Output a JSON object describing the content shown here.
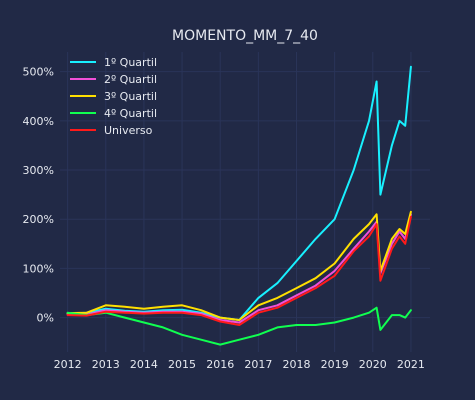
{
  "chart_data": {
    "type": "line",
    "title": "MOMENTO_MM_7_40",
    "xlabel": "",
    "ylabel": "",
    "xlim": [
      2011.8,
      2021.5
    ],
    "ylim": [
      -70,
      540
    ],
    "x_ticks": [
      2012,
      2013,
      2014,
      2015,
      2016,
      2017,
      2018,
      2019,
      2020,
      2021
    ],
    "x_tick_labels": [
      "2012",
      "2013",
      "2014",
      "2015",
      "2016",
      "2017",
      "2018",
      "2019",
      "2020",
      "2021"
    ],
    "y_ticks": [
      0,
      100,
      200,
      300,
      400,
      500
    ],
    "y_tick_labels": [
      "0%",
      "100%",
      "200%",
      "300%",
      "400%",
      "500%"
    ],
    "grid": true,
    "legend_position": "top-left",
    "series": [
      {
        "name": "1º Quartil",
        "color": "#18f0ff",
        "x": [
          2012.0,
          2012.5,
          2013.0,
          2013.5,
          2014.0,
          2014.5,
          2015.0,
          2015.5,
          2016.0,
          2016.5,
          2017.0,
          2017.5,
          2018.0,
          2018.5,
          2019.0,
          2019.5,
          2019.9,
          2020.1,
          2020.2,
          2020.5,
          2020.7,
          2020.85,
          2021.0
        ],
        "y": [
          8,
          10,
          18,
          14,
          12,
          15,
          16,
          10,
          0,
          -5,
          40,
          70,
          115,
          160,
          200,
          300,
          400,
          480,
          250,
          350,
          400,
          390,
          510
        ]
      },
      {
        "name": "2º Quartil",
        "color": "#f050d8",
        "x": [
          2012.0,
          2012.5,
          2013.0,
          2013.5,
          2014.0,
          2014.5,
          2015.0,
          2015.5,
          2016.0,
          2016.5,
          2017.0,
          2017.5,
          2018.0,
          2018.5,
          2019.0,
          2019.5,
          2019.9,
          2020.1,
          2020.2,
          2020.5,
          2020.7,
          2020.85,
          2021.0
        ],
        "y": [
          7,
          6,
          15,
          12,
          10,
          12,
          12,
          8,
          -5,
          -10,
          15,
          25,
          45,
          65,
          95,
          140,
          175,
          195,
          90,
          150,
          175,
          160,
          210
        ]
      },
      {
        "name": "3º Quartil",
        "color": "#ffe000",
        "x": [
          2012.0,
          2012.5,
          2013.0,
          2013.5,
          2014.0,
          2014.5,
          2015.0,
          2015.5,
          2016.0,
          2016.5,
          2017.0,
          2017.5,
          2018.0,
          2018.5,
          2019.0,
          2019.5,
          2019.9,
          2020.1,
          2020.2,
          2020.5,
          2020.7,
          2020.85,
          2021.0
        ],
        "y": [
          9,
          10,
          25,
          22,
          18,
          22,
          25,
          15,
          0,
          -5,
          25,
          40,
          60,
          80,
          110,
          160,
          190,
          210,
          95,
          160,
          180,
          170,
          215
        ]
      },
      {
        "name": "4º Quartil",
        "color": "#10ff50",
        "x": [
          2012.0,
          2012.5,
          2013.0,
          2013.5,
          2014.0,
          2014.5,
          2015.0,
          2015.5,
          2016.0,
          2016.5,
          2017.0,
          2017.5,
          2018.0,
          2018.5,
          2019.0,
          2019.5,
          2019.9,
          2020.1,
          2020.2,
          2020.5,
          2020.7,
          2020.85,
          2021.0
        ],
        "y": [
          10,
          5,
          10,
          0,
          -10,
          -20,
          -35,
          -45,
          -55,
          -45,
          -35,
          -20,
          -15,
          -15,
          -10,
          0,
          10,
          20,
          -25,
          5,
          5,
          0,
          15
        ]
      },
      {
        "name": "Universo",
        "color": "#ff1a1a",
        "x": [
          2012.0,
          2012.5,
          2013.0,
          2013.5,
          2014.0,
          2014.5,
          2015.0,
          2015.5,
          2016.0,
          2016.5,
          2017.0,
          2017.5,
          2018.0,
          2018.5,
          2019.0,
          2019.5,
          2019.9,
          2020.1,
          2020.2,
          2020.5,
          2020.7,
          2020.85,
          2021.0
        ],
        "y": [
          5,
          4,
          12,
          10,
          8,
          10,
          10,
          5,
          -8,
          -15,
          10,
          20,
          40,
          60,
          85,
          135,
          165,
          190,
          75,
          140,
          165,
          150,
          205
        ]
      }
    ]
  }
}
